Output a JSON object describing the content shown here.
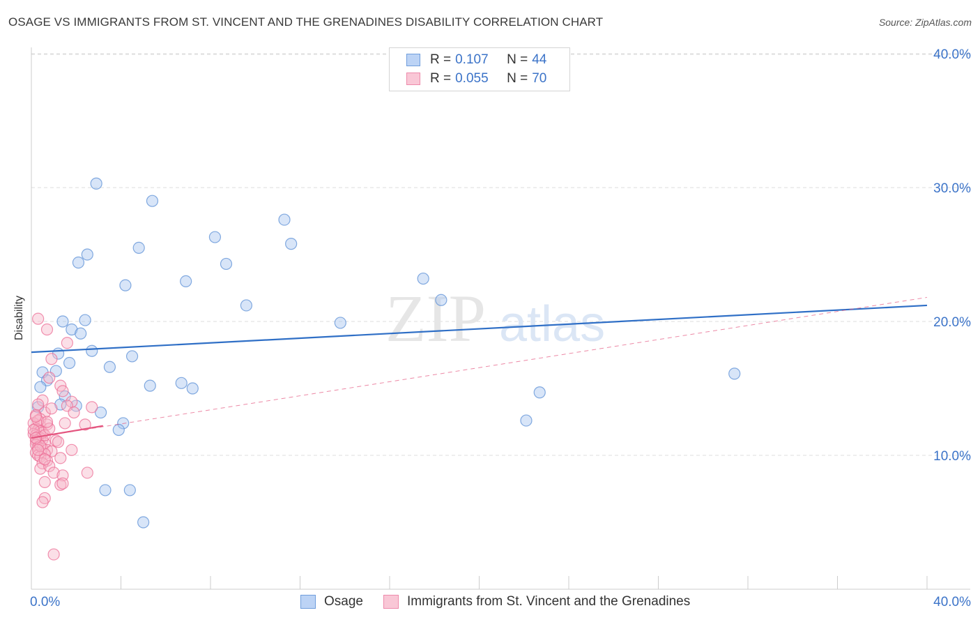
{
  "title": "OSAGE VS IMMIGRANTS FROM ST. VINCENT AND THE GRENADINES DISABILITY CORRELATION CHART",
  "source": "Source: ZipAtlas.com",
  "watermark": {
    "zip": "ZIP",
    "atlas": "atlas"
  },
  "colors": {
    "osage_fill": "#a9c6f0",
    "osage_stroke": "#5b8fd6",
    "osage_line": "#2f6fc6",
    "svg_fill": "#f7b7ca",
    "svg_stroke": "#ec6d96",
    "svg_line": "#e4557f",
    "axis_text": "#3b73c8",
    "grid": "#dddddd"
  },
  "legend_top": [
    {
      "r_label": "R =",
      "r_value": "0.107",
      "n_label": "N =",
      "n_value": "44"
    },
    {
      "r_label": "R =",
      "r_value": "0.055",
      "n_label": "N =",
      "n_value": "70"
    }
  ],
  "legend_bottom": [
    "Osage",
    "Immigrants from St. Vincent and the Grenadines"
  ],
  "chart_data": {
    "type": "scatter",
    "title": "OSAGE VS IMMIGRANTS FROM ST. VINCENT AND THE GRENADINES DISABILITY CORRELATION CHART",
    "xlabel": "",
    "ylabel": "Disability",
    "xlim": [
      0,
      40
    ],
    "ylim": [
      0,
      40
    ],
    "x_tick_labels": [
      "0.0%",
      "40.0%"
    ],
    "y_ticks": [
      10,
      20,
      30,
      40
    ],
    "y_tick_labels": [
      "10.0%",
      "20.0%",
      "30.0%",
      "40.0%"
    ],
    "grid": true,
    "legend_position": "top-center",
    "series": [
      {
        "name": "Osage",
        "R": 0.107,
        "N": 44,
        "trend": {
          "x": [
            0,
            40
          ],
          "y": [
            17.7,
            21.2
          ],
          "style": "solid"
        },
        "points": [
          [
            2.9,
            30.3
          ],
          [
            5.4,
            29.0
          ],
          [
            2.5,
            25.0
          ],
          [
            4.8,
            25.5
          ],
          [
            2.1,
            24.4
          ],
          [
            8.2,
            26.3
          ],
          [
            11.3,
            27.6
          ],
          [
            8.7,
            24.3
          ],
          [
            11.6,
            25.8
          ],
          [
            4.2,
            22.7
          ],
          [
            6.9,
            23.0
          ],
          [
            9.6,
            21.2
          ],
          [
            17.5,
            23.2
          ],
          [
            18.3,
            21.6
          ],
          [
            13.8,
            19.9
          ],
          [
            1.4,
            20.0
          ],
          [
            2.4,
            20.1
          ],
          [
            1.8,
            19.4
          ],
          [
            2.2,
            19.1
          ],
          [
            1.2,
            17.6
          ],
          [
            4.5,
            17.4
          ],
          [
            2.7,
            17.8
          ],
          [
            1.7,
            16.9
          ],
          [
            0.5,
            16.2
          ],
          [
            1.1,
            16.3
          ],
          [
            3.5,
            16.6
          ],
          [
            0.7,
            15.6
          ],
          [
            0.4,
            15.1
          ],
          [
            5.3,
            15.2
          ],
          [
            6.7,
            15.4
          ],
          [
            7.2,
            15.0
          ],
          [
            1.5,
            14.4
          ],
          [
            1.3,
            13.8
          ],
          [
            0.3,
            13.6
          ],
          [
            2.0,
            13.7
          ],
          [
            3.1,
            13.2
          ],
          [
            4.1,
            12.4
          ],
          [
            3.9,
            11.9
          ],
          [
            22.7,
            14.7
          ],
          [
            22.1,
            12.6
          ],
          [
            31.4,
            16.1
          ],
          [
            3.3,
            7.4
          ],
          [
            5.0,
            5.0
          ],
          [
            4.4,
            7.4
          ]
        ]
      },
      {
        "name": "Immigrants from St. Vincent and the Grenadines",
        "R": 0.055,
        "N": 70,
        "trend": {
          "x": [
            0,
            3.2
          ],
          "y": [
            11.3,
            12.2
          ],
          "style": "solid"
        },
        "trend_extended": {
          "x": [
            0,
            40
          ],
          "y": [
            11.3,
            21.8
          ],
          "style": "dashed"
        },
        "points": [
          [
            0.3,
            20.2
          ],
          [
            0.7,
            19.4
          ],
          [
            1.6,
            18.4
          ],
          [
            0.9,
            17.2
          ],
          [
            0.8,
            15.8
          ],
          [
            1.3,
            15.2
          ],
          [
            1.4,
            14.8
          ],
          [
            0.5,
            14.1
          ],
          [
            0.3,
            13.8
          ],
          [
            1.8,
            14.0
          ],
          [
            1.6,
            13.7
          ],
          [
            1.9,
            13.2
          ],
          [
            2.7,
            13.6
          ],
          [
            0.6,
            13.2
          ],
          [
            0.2,
            13.0
          ],
          [
            0.4,
            12.7
          ],
          [
            0.1,
            12.4
          ],
          [
            0.4,
            12.2
          ],
          [
            0.7,
            12.3
          ],
          [
            1.5,
            12.4
          ],
          [
            2.4,
            12.3
          ],
          [
            0.2,
            12.0
          ],
          [
            0.3,
            11.9
          ],
          [
            0.4,
            11.8
          ],
          [
            0.1,
            11.6
          ],
          [
            0.2,
            11.5
          ],
          [
            0.3,
            11.4
          ],
          [
            0.4,
            11.3
          ],
          [
            0.5,
            11.2
          ],
          [
            0.2,
            11.1
          ],
          [
            0.3,
            11.0
          ],
          [
            0.6,
            10.9
          ],
          [
            1.1,
            11.1
          ],
          [
            0.2,
            10.8
          ],
          [
            0.3,
            10.6
          ],
          [
            0.5,
            10.5
          ],
          [
            0.7,
            10.4
          ],
          [
            0.9,
            10.3
          ],
          [
            0.2,
            10.2
          ],
          [
            0.3,
            10.0
          ],
          [
            0.6,
            10.1
          ],
          [
            1.8,
            10.4
          ],
          [
            0.4,
            9.9
          ],
          [
            0.7,
            9.6
          ],
          [
            1.3,
            9.8
          ],
          [
            0.5,
            9.4
          ],
          [
            0.4,
            9.0
          ],
          [
            0.8,
            9.2
          ],
          [
            1.0,
            8.7
          ],
          [
            2.5,
            8.7
          ],
          [
            1.4,
            8.5
          ],
          [
            0.6,
            8.0
          ],
          [
            1.3,
            7.8
          ],
          [
            1.4,
            7.9
          ],
          [
            0.6,
            6.8
          ],
          [
            0.5,
            6.5
          ],
          [
            1.0,
            2.6
          ],
          [
            0.3,
            12.6
          ],
          [
            0.2,
            12.9
          ],
          [
            0.5,
            11.7
          ],
          [
            0.6,
            11.5
          ],
          [
            0.1,
            11.9
          ],
          [
            0.8,
            12.0
          ],
          [
            0.4,
            10.7
          ],
          [
            0.2,
            11.3
          ],
          [
            1.2,
            11.0
          ],
          [
            0.9,
            13.5
          ],
          [
            0.7,
            12.5
          ],
          [
            0.3,
            10.4
          ],
          [
            0.6,
            9.7
          ]
        ]
      }
    ]
  }
}
